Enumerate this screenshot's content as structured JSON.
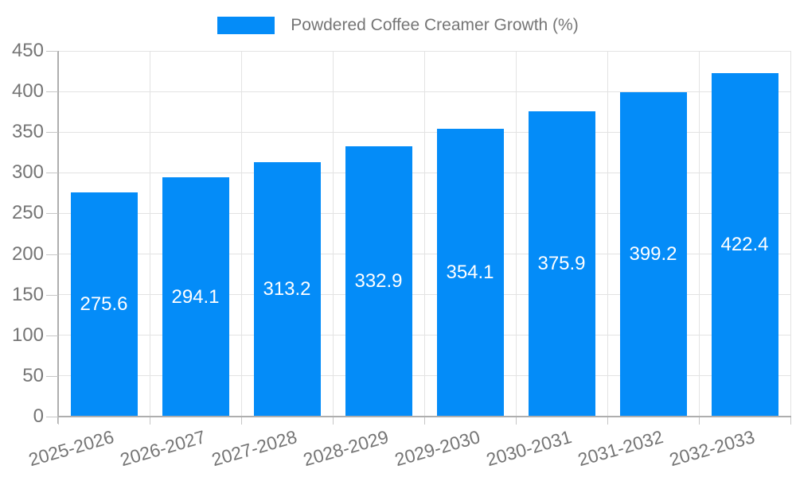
{
  "chart_data": {
    "type": "bar",
    "title": "",
    "legend_label": "Powdered Coffee Creamer Growth (%)",
    "legend_position": "top",
    "categories": [
      "2025-2026",
      "2026-2027",
      "2027-2028",
      "2028-2029",
      "2029-2030",
      "2030-2031",
      "2031-2032",
      "2032-2033"
    ],
    "series": [
      {
        "name": "Powdered Coffee Creamer Growth (%)",
        "values": [
          275.6,
          294.1,
          313.2,
          332.9,
          354.1,
          375.9,
          399.2,
          422.4
        ]
      }
    ],
    "xlabel": "",
    "ylabel": "",
    "ylim": [
      0,
      450
    ],
    "yticks": [
      0,
      50,
      100,
      150,
      200,
      250,
      300,
      350,
      400,
      450
    ],
    "grid": true,
    "colors": {
      "bar": "#048CF8",
      "grid": "#e3e3e3",
      "axis": "#aeaeae",
      "tick": "#c6c6c6",
      "tick_label": "#757575",
      "value_label": "#ffffff",
      "background": "#ffffff"
    }
  }
}
